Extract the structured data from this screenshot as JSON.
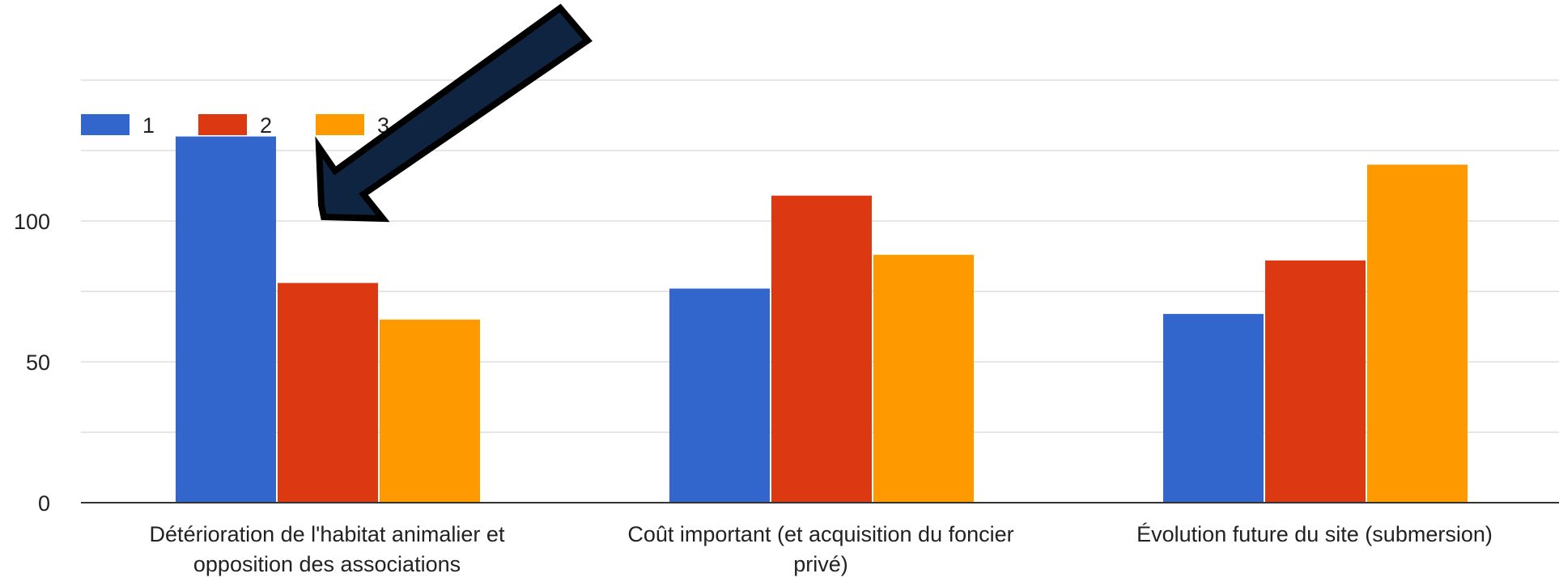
{
  "chart_data": {
    "type": "bar",
    "categories": [
      [
        "Détérioration de l'habitat animalier et",
        "opposition des associations"
      ],
      [
        "Coût important (et acquisition du foncier",
        "privé)"
      ],
      [
        "Évolution future du site (submersion)"
      ]
    ],
    "series": [
      {
        "name": "1",
        "values": [
          130,
          76,
          67
        ],
        "color": "#3366cc"
      },
      {
        "name": "2",
        "values": [
          78,
          109,
          86
        ],
        "color": "#dc3912"
      },
      {
        "name": "3",
        "values": [
          65,
          88,
          120
        ],
        "color": "#ff9900"
      }
    ],
    "yticks": [
      "0",
      "50",
      "100"
    ],
    "ylim": [
      0,
      150
    ],
    "grid": true,
    "legend_position": "top-left",
    "annotation": "dark arrow pointing at the first group's tallest bar"
  }
}
